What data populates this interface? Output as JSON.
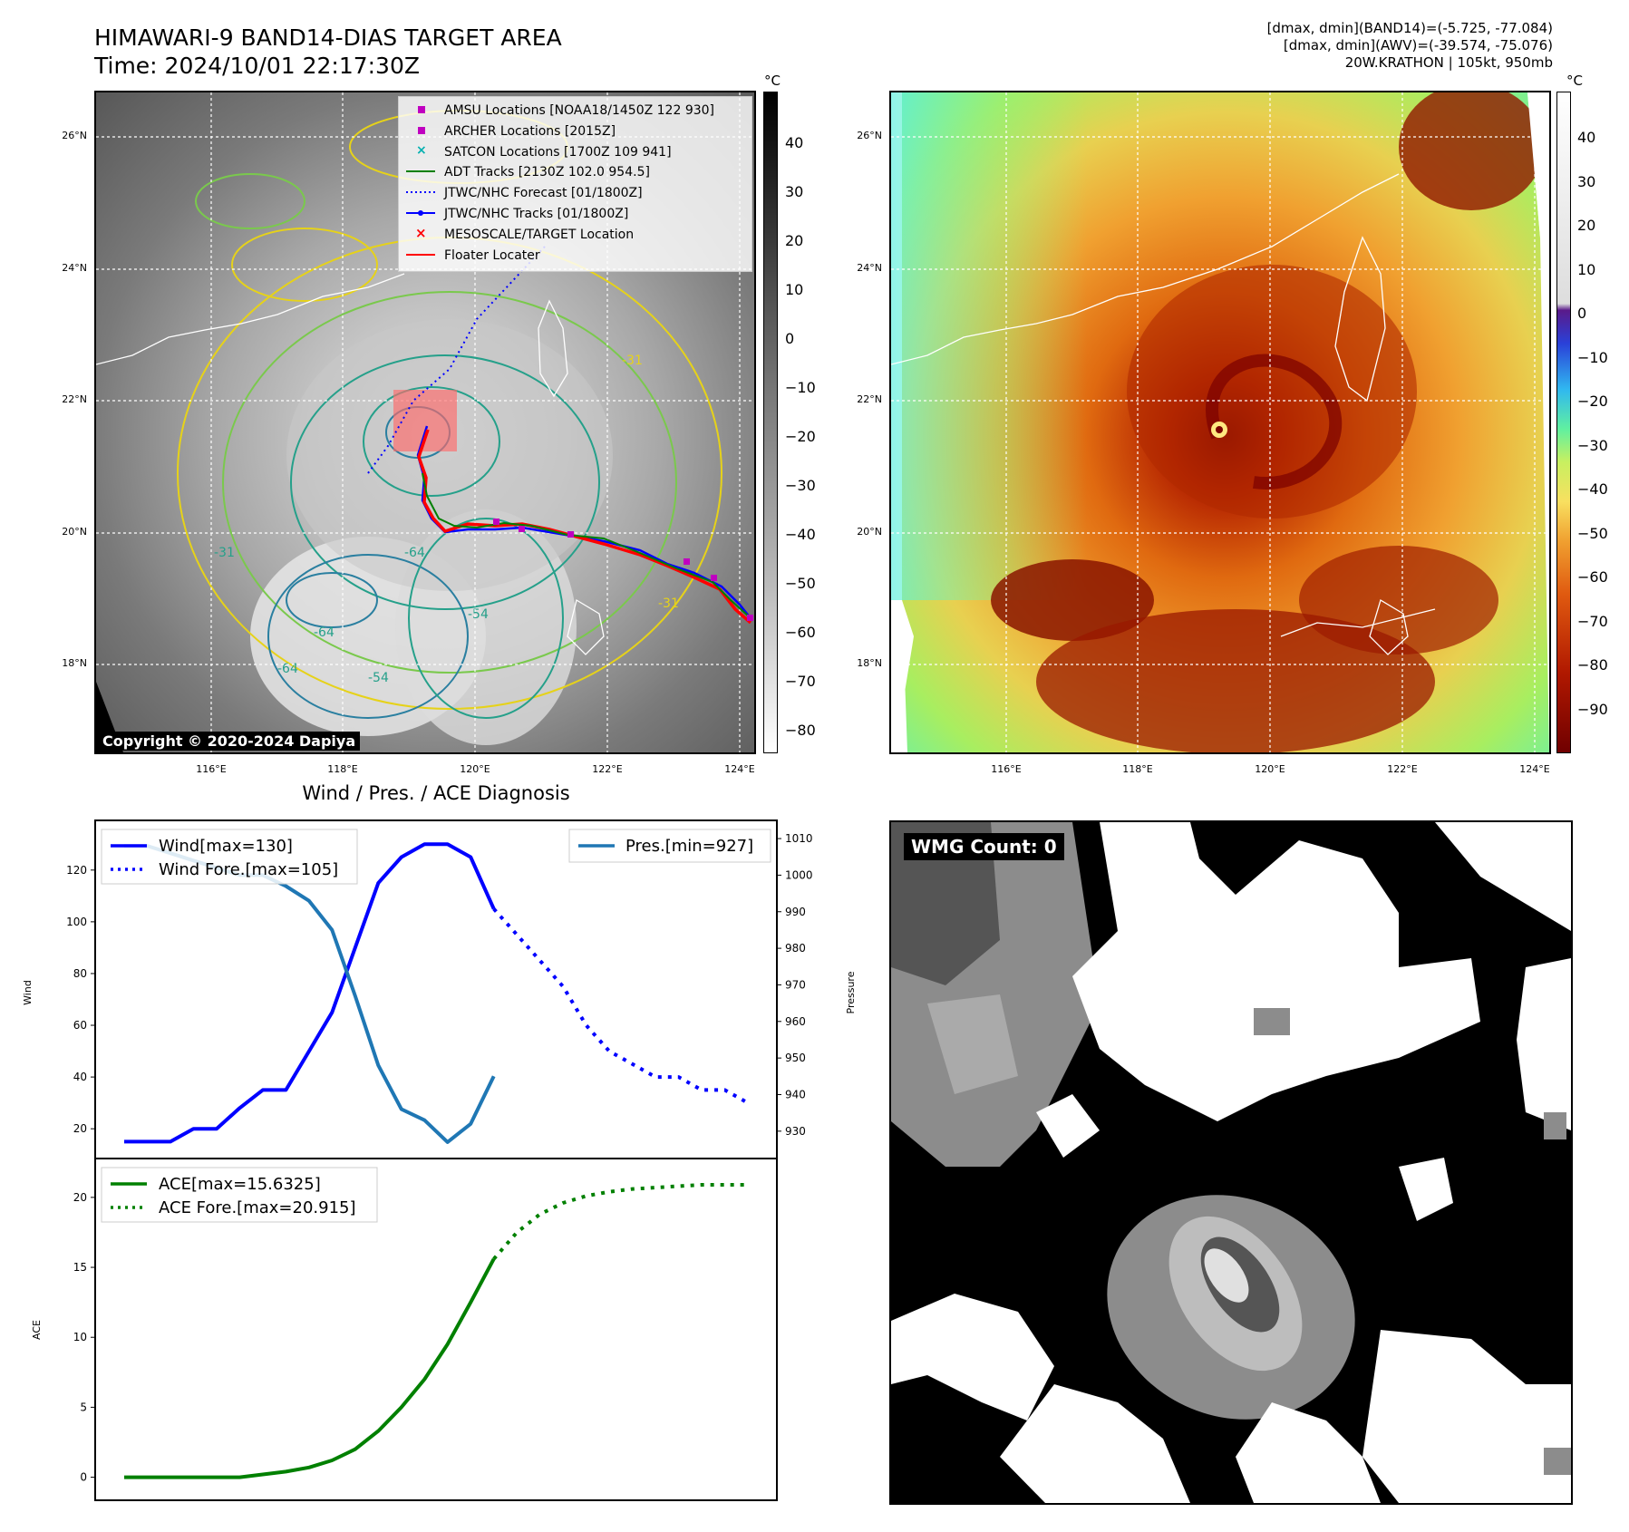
{
  "header": {
    "title": "HIMAWARI-9 BAND14-DIAS TARGET AREA",
    "time": "Time: 2024/10/01 22:17:30Z",
    "info_lines": [
      "[dmax, dmin](BAND14)=(-5.725, -77.084)",
      "[dmax, dmin](AWV)=(-39.574, -75.076)",
      "20W.KRATHON | 105kt, 950mb"
    ]
  },
  "copyright": "Copyright © 2020-2024 Dapiya",
  "unit_c": "°C",
  "ir_map": {
    "xticks": [
      "116°E",
      "118°E",
      "120°E",
      "122°E",
      "124°E"
    ],
    "yticks": [
      "26°N",
      "24°N",
      "22°N",
      "20°N",
      "18°N"
    ],
    "legend": [
      {
        "label": "AMSU Locations [NOAA18/1450Z 122 930]",
        "marker": "square",
        "color": "#c000c0"
      },
      {
        "label": "ARCHER Locations [2015Z]",
        "marker": "square",
        "color": "#c000c0"
      },
      {
        "label": "SATCON Locations [1700Z 109 941]",
        "marker": "x",
        "color": "#00b0b0"
      },
      {
        "label": "ADT Tracks [2130Z 102.0 954.5]",
        "marker": "line",
        "color": "#008000"
      },
      {
        "label": "JTWC/NHC Forecast [01/1800Z]",
        "marker": "dotted",
        "color": "#0000ff"
      },
      {
        "label": "JTWC/NHC Tracks [01/1800Z]",
        "marker": "line-dot",
        "color": "#0000ff"
      },
      {
        "label": "MESOSCALE/TARGET Location",
        "marker": "x",
        "color": "#ff0000"
      },
      {
        "label": "Floater Locater",
        "marker": "line",
        "color": "#ff0000"
      }
    ],
    "contour_labels": [
      "-31",
      "-64",
      "-54",
      "-64",
      "-54",
      "-64",
      "-31",
      "-31"
    ],
    "colorbar_ticks": [
      "40",
      "30",
      "20",
      "10",
      "0",
      "−10",
      "−20",
      "−30",
      "−40",
      "−50",
      "−60",
      "−70",
      "−80"
    ]
  },
  "awv_map": {
    "xticks": [
      "116°E",
      "118°E",
      "120°E",
      "122°E",
      "124°E"
    ],
    "yticks": [
      "26°N",
      "24°N",
      "22°N",
      "20°N",
      "18°N"
    ],
    "colorbar_ticks": [
      "40",
      "30",
      "20",
      "10",
      "0",
      "−10",
      "−20",
      "−30",
      "−40",
      "−50",
      "−60",
      "−70",
      "−80",
      "−90"
    ]
  },
  "wmg": {
    "label": "WMG Count: 0"
  },
  "chart_data": [
    {
      "type": "line",
      "title": "Wind / Pres. / ACE Diagnosis",
      "ylabel": "Wind",
      "ylabel_right": "Pressure",
      "ylim": [
        12,
        135
      ],
      "ylim_right": [
        925,
        1012
      ],
      "yticks": [
        20,
        40,
        60,
        80,
        100,
        120
      ],
      "yticks_right": [
        930,
        940,
        950,
        960,
        970,
        980,
        990,
        1000,
        1010
      ],
      "series": [
        {
          "name": "Wind[max=130]",
          "axis": "left",
          "color": "#0000ff",
          "style": "solid",
          "x": [
            0,
            1,
            2,
            3,
            4,
            5,
            6,
            7,
            8,
            9,
            10,
            11,
            12,
            13,
            14,
            15,
            16
          ],
          "values": [
            15,
            15,
            15,
            20,
            20,
            28,
            35,
            35,
            50,
            65,
            90,
            115,
            125,
            130,
            130,
            125,
            105
          ]
        },
        {
          "name": "Wind Fore.[max=105]",
          "axis": "left",
          "color": "#0000ff",
          "style": "dotted",
          "x": [
            16,
            17,
            18,
            19,
            20,
            21,
            22,
            23,
            24,
            25,
            26,
            27
          ],
          "values": [
            105,
            95,
            85,
            75,
            60,
            50,
            45,
            40,
            40,
            35,
            35,
            30
          ]
        },
        {
          "name": "Pres.[min=927]",
          "axis": "right",
          "color": "#1f77b4",
          "style": "solid",
          "x": [
            0,
            1,
            2,
            3,
            4,
            5,
            6,
            7,
            8,
            9,
            10,
            11,
            12,
            13,
            14,
            15,
            16
          ],
          "values": [
            1008,
            1008,
            1006,
            1004,
            1002,
            1000,
            1000,
            997,
            993,
            985,
            967,
            948,
            936,
            933,
            927,
            932,
            945
          ]
        }
      ]
    },
    {
      "type": "line",
      "ylabel": "ACE",
      "ylim": [
        -1,
        22
      ],
      "yticks": [
        0,
        5,
        10,
        15,
        20
      ],
      "series": [
        {
          "name": "ACE[max=15.6325]",
          "color": "#008000",
          "style": "solid",
          "x": [
            0,
            1,
            2,
            3,
            4,
            5,
            6,
            7,
            8,
            9,
            10,
            11,
            12,
            13,
            14,
            15,
            16
          ],
          "values": [
            0,
            0,
            0,
            0,
            0,
            0,
            0.2,
            0.4,
            0.7,
            1.2,
            2.0,
            3.3,
            5.0,
            7.0,
            9.5,
            12.5,
            15.6
          ]
        },
        {
          "name": "ACE Fore.[max=20.915]",
          "color": "#008000",
          "style": "dotted",
          "x": [
            16,
            17,
            18,
            19,
            20,
            21,
            22,
            23,
            24,
            25,
            26,
            27
          ],
          "values": [
            15.6,
            17.5,
            18.8,
            19.6,
            20.1,
            20.4,
            20.6,
            20.7,
            20.8,
            20.9,
            20.9,
            20.9
          ]
        }
      ]
    }
  ]
}
